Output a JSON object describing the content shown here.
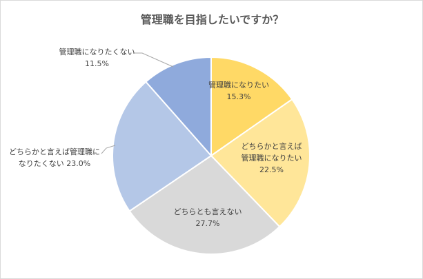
{
  "chart_data": {
    "type": "pie",
    "title": "管理職を目指したいですか？",
    "categories": [
      "管理職になりたい",
      "どちらかと言えば管理職になりたい",
      "どちらとも言えない",
      "どちらかと言えば管理職になりたくない",
      "管理職になりたくない"
    ],
    "values": [
      15.3,
      22.5,
      27.7,
      23.0,
      11.5
    ],
    "value_labels": [
      "15.3%",
      "22.5%",
      "27.7%",
      "23.0%",
      "11.5%"
    ],
    "colors": [
      "#ffd966",
      "#ffe699",
      "#d9d9d9",
      "#b4c7e7",
      "#8faadc"
    ]
  }
}
